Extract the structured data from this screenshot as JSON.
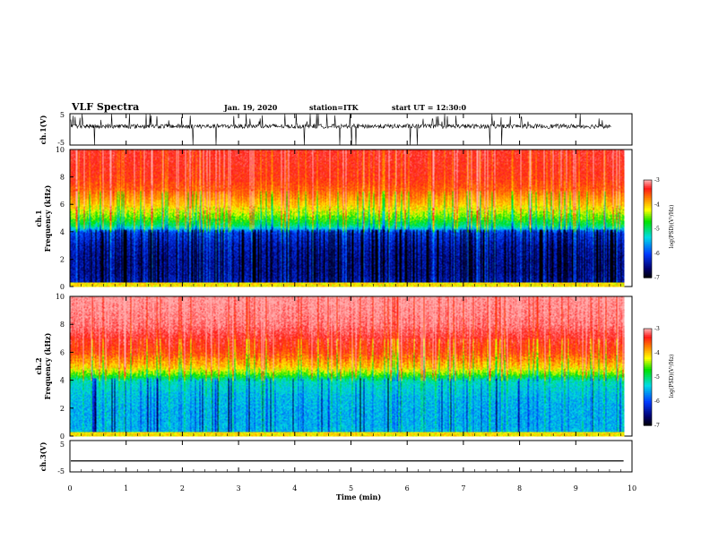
{
  "header": {
    "title": "VLF Spectra",
    "date": "Jan. 19, 2020",
    "station": "station=ITK",
    "start_ut": "start UT = 12:30:0"
  },
  "chart_data": [
    {
      "type": "line",
      "panel": "ch1-waveform",
      "ylabel": "ch.1(V)",
      "yticks": [
        "5",
        "-5"
      ],
      "ylim": [
        -5,
        5
      ],
      "xlim": [
        0,
        10
      ],
      "color": "#000000",
      "description_level": "noisy trace around +1 V with frequent spikes to +5 and -5"
    },
    {
      "type": "heatmap",
      "panel": "ch1-spectrogram",
      "ylabel": "ch.1\nFrequency (kHz)",
      "ylabel_line1": "ch.1",
      "ylabel_line2": "Frequency (kHz)",
      "yticks": [
        "0",
        "2",
        "4",
        "6",
        "8",
        "10"
      ],
      "ylim": [
        0,
        10
      ],
      "xlim": [
        0,
        9.85
      ],
      "colorbar": {
        "label": "log(PSD)(V²/Hz)",
        "ticks": [
          "-3",
          "-4",
          "-5",
          "-6",
          "-7"
        ],
        "range": [
          -7,
          -3
        ]
      },
      "profile_kHz": [
        0,
        1,
        2,
        3,
        4,
        4.5,
        5,
        6,
        7,
        8,
        10
      ],
      "profile_logpsd": [
        -6.2,
        -6.4,
        -6.4,
        -6.3,
        -6.0,
        -5.0,
        -4.6,
        -4.0,
        -3.6,
        -3.4,
        -3.3
      ]
    },
    {
      "type": "heatmap",
      "panel": "ch2-spectrogram",
      "ylabel_line1": "ch.2",
      "ylabel_line2": "Frequency (kHz)",
      "yticks": [
        "0",
        "2",
        "4",
        "6",
        "8",
        "10"
      ],
      "ylim": [
        0,
        10
      ],
      "xlim": [
        0,
        9.85
      ],
      "colorbar": {
        "label": "log(PSD)(V²/Hz)",
        "ticks": [
          "-3",
          "-4",
          "-5",
          "-6",
          "-7"
        ],
        "range": [
          -7,
          -3
        ]
      },
      "profile_kHz": [
        0,
        1,
        2,
        3,
        4,
        4.5,
        5,
        6,
        7,
        8,
        10
      ],
      "profile_logpsd": [
        -5.4,
        -5.5,
        -5.5,
        -5.4,
        -5.2,
        -4.5,
        -4.0,
        -3.5,
        -3.3,
        -3.1,
        -3.0
      ]
    },
    {
      "type": "line",
      "panel": "ch3-waveform",
      "ylabel": "ch.3(V)",
      "yticks": [
        "5",
        "-5"
      ],
      "ylim": [
        -5,
        5
      ],
      "xlim": [
        0,
        10
      ],
      "constant_value": -1.5,
      "color": "#000000"
    }
  ],
  "x_axis": {
    "label": "Time (min)",
    "ticks": [
      "0",
      "1",
      "2",
      "3",
      "4",
      "5",
      "6",
      "7",
      "8",
      "9",
      "10"
    ],
    "range": [
      0,
      10
    ]
  },
  "colors": {
    "red": "#ff1a1a",
    "orange": "#ff8c00",
    "yellow": "#ffff00",
    "green": "#00e000",
    "cyan": "#00e0e0",
    "blue": "#0060ff",
    "darkblue": "#000080",
    "black": "#000000"
  }
}
